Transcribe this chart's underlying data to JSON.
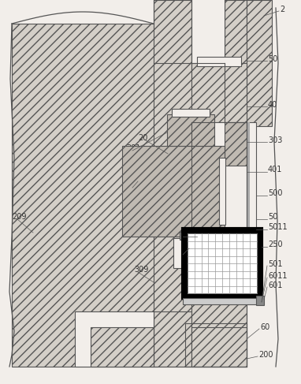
{
  "bg_color": "#f2eeea",
  "lc": "#555555",
  "hatch_fc": "#d4cfc8",
  "hatch_fc2": "#c0bab2",
  "figsize": [
    3.82,
    4.87
  ],
  "dpi": 100
}
